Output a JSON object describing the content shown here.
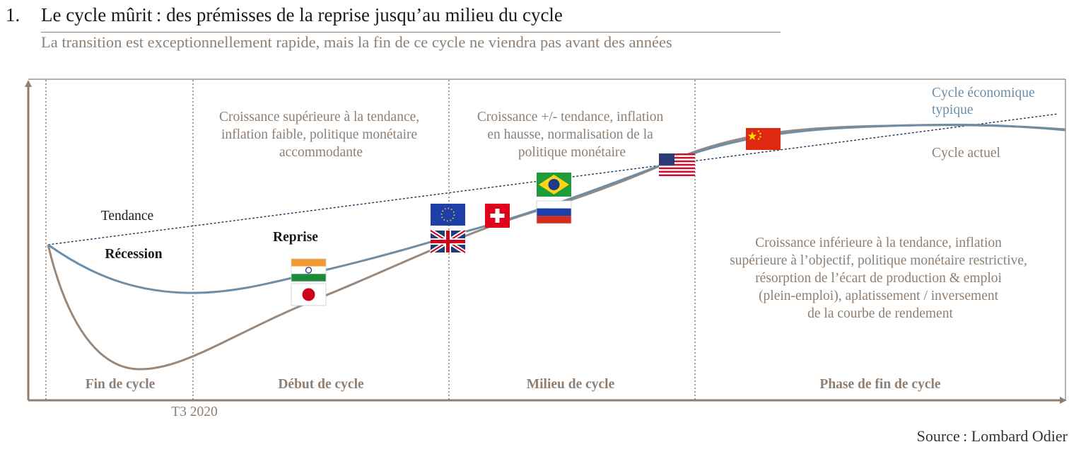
{
  "header": {
    "number": "1.",
    "title": "Le cycle mûrit : des prémisses de la reprise jusqu’au milieu du cycle",
    "subtitle": "La transition est exceptionnellement rapide, mais la fin de ce cycle ne viendra pas avant des années"
  },
  "diagram": {
    "phases": [
      "Fin de cycle",
      "Début de cycle",
      "Milieu de cycle",
      "Phase de fin de cycle"
    ],
    "axis_label": "T3 2020",
    "labels": {
      "tendance": "Tendance",
      "recession": "Récession",
      "reprise": "Reprise",
      "typical_cycle_line1": "Cycle économique",
      "typical_cycle_line2": "typique",
      "current_cycle": "Cycle actuel"
    },
    "descriptions": {
      "debut": [
        "Croissance supérieure à la tendance,",
        "inflation faible, politique monétaire",
        "accommodante"
      ],
      "milieu": [
        "Croissance +/- tendance, inflation",
        "en hausse, normalisation de la",
        "politique monétaire"
      ],
      "fin": [
        "Croissance inférieure à la tendance, inflation",
        "supérieure à l’objectif, politique monétaire restrictive,",
        "résorption de l’écart de production & emploi",
        "(plein-emploi), aplatissement / inversement",
        "de la courbe de rendement"
      ]
    },
    "flags": [
      "india-flag",
      "japan-flag",
      "eu-flag",
      "uk-flag",
      "switzerland-flag",
      "brazil-flag",
      "russia-flag",
      "usa-flag",
      "china-flag"
    ],
    "colors": {
      "typical_cycle": "#6c8ea8",
      "current_cycle": "#9a887b",
      "trend": "#1f3a5f",
      "frame": "#8f7f72",
      "text_gray": "#8f7f72"
    }
  },
  "footer": {
    "source": "Source : Lombard Odier"
  }
}
